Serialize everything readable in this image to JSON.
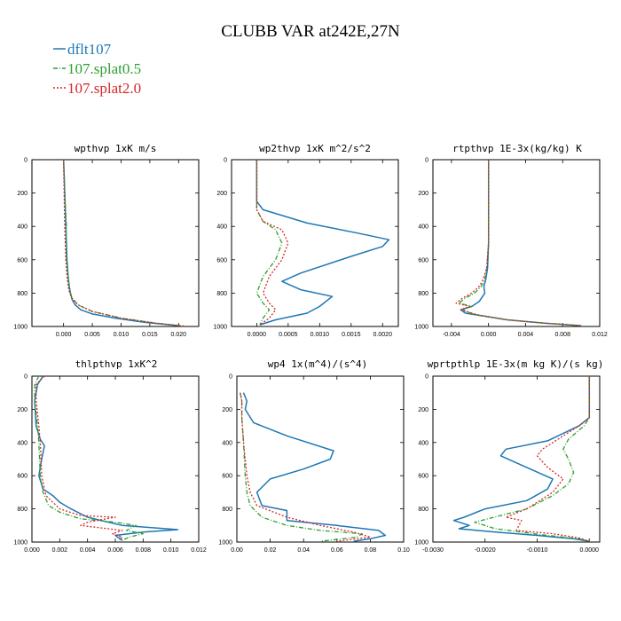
{
  "figure": {
    "title": "CLUBB VAR at242E,27N"
  },
  "colors": {
    "dflt107": "#1f77b4",
    "splat05": "#2ca02c",
    "splat20": "#d62728"
  },
  "chart_data": [
    {
      "type": "line",
      "id": "p1",
      "title": "wpthvp  1xK m/s",
      "series_names": [
        "dflt107",
        "107.splat0.5",
        "107.splat2.0"
      ],
      "xlim": [
        -0.0055,
        0.0235
      ],
      "ylim": [
        1000,
        0
      ],
      "xticks": [
        0,
        0.005,
        0.01,
        0.015,
        0.02
      ],
      "xtick_labels": [
        "0.000",
        "0.005",
        "0.010",
        "0.015",
        "0.020"
      ],
      "yticks": [
        0,
        200,
        400,
        600,
        800,
        1000
      ],
      "ytick_labels": [
        "0",
        "200",
        "400",
        "600",
        "800",
        "1000"
      ],
      "series": [
        {
          "name": "dflt107",
          "x": [
            0,
            0.0002,
            0.0004,
            0.0006,
            0.0008,
            0.001,
            0.0012,
            0.0015,
            0.002,
            0.003,
            0.005,
            0.009,
            0.014,
            0.02
          ],
          "y": [
            0,
            200,
            400,
            600,
            700,
            760,
            800,
            840,
            870,
            900,
            925,
            950,
            975,
            995
          ]
        },
        {
          "name": "107.splat0.5",
          "x": [
            0,
            0.0002,
            0.0005,
            0.0004,
            0.0005,
            0.0008,
            0.001,
            0.0015,
            0.0025,
            0.005,
            0.01,
            0.016,
            0.021
          ],
          "y": [
            0,
            200,
            400,
            500,
            600,
            700,
            780,
            830,
            870,
            910,
            950,
            980,
            998
          ]
        },
        {
          "name": "107.splat2.0",
          "x": [
            0,
            0.0001,
            0.0002,
            0.0003,
            0.0004,
            0.0006,
            0.0009,
            0.0014,
            0.0025,
            0.005,
            0.01,
            0.016,
            0.021
          ],
          "y": [
            0,
            200,
            400,
            500,
            600,
            700,
            780,
            830,
            870,
            910,
            950,
            980,
            998
          ]
        }
      ]
    },
    {
      "type": "line",
      "id": "p2",
      "title": "wp2thvp  1xK m^2/s^2",
      "series_names": [
        "dflt107",
        "107.splat0.5",
        "107.splat2.0"
      ],
      "xlim": [
        -0.0004,
        0.00225
      ],
      "ylim": [
        1000,
        0
      ],
      "xticks": [
        0,
        0.0005,
        0.001,
        0.0015,
        0.002
      ],
      "xtick_labels": [
        "0.0000",
        "0.0005",
        "0.0010",
        "0.0015",
        "0.0020"
      ],
      "yticks": [
        0,
        200,
        400,
        600,
        800,
        1000
      ],
      "ytick_labels": [
        "0",
        "200",
        "400",
        "600",
        "800",
        "1000"
      ],
      "series": [
        {
          "name": "dflt107",
          "x": [
            0,
            0,
            0,
            0.0001,
            0.0008,
            0.0016,
            0.0021,
            0.002,
            0.0015,
            0.0007,
            0.0004,
            0.0007,
            0.0012,
            0.001,
            0.0008,
            0.0003,
            5e-05
          ],
          "y": [
            0,
            150,
            250,
            300,
            380,
            440,
            480,
            520,
            580,
            680,
            730,
            780,
            820,
            880,
            920,
            960,
            990
          ]
        },
        {
          "name": "107.splat0.5",
          "x": [
            0,
            0,
            0,
            0.0001,
            0.0003,
            0.0004,
            0.0003,
            0.0001,
            0,
            0.0001,
            0.0002,
            0.0001,
            5e-05
          ],
          "y": [
            0,
            150,
            300,
            370,
            420,
            500,
            600,
            700,
            800,
            860,
            900,
            950,
            990
          ]
        },
        {
          "name": "107.splat2.0",
          "x": [
            0,
            0,
            0,
            0.0001,
            0.0004,
            0.0005,
            0.0004,
            0.0002,
            0.0001,
            0.0002,
            0.0003,
            0.0002,
            5e-05
          ],
          "y": [
            0,
            150,
            300,
            370,
            420,
            500,
            600,
            700,
            800,
            860,
            900,
            950,
            990
          ]
        }
      ]
    },
    {
      "type": "line",
      "id": "p3",
      "title": "rtpthvp  1E-3x(kg/kg) K",
      "series_names": [
        "dflt107",
        "107.splat0.5",
        "107.splat2.0"
      ],
      "xlim": [
        -0.006,
        0.012
      ],
      "ylim": [
        1000,
        0
      ],
      "xticks": [
        -0.004,
        0,
        0.004,
        0.008,
        0.012
      ],
      "xtick_labels": [
        "-0.004",
        "0.000",
        "0.004",
        "0.008",
        "0.012"
      ],
      "yticks": [
        0,
        200,
        400,
        600,
        800,
        1000
      ],
      "ytick_labels": [
        "0",
        "200",
        "400",
        "600",
        "800",
        "1000"
      ],
      "series": [
        {
          "name": "dflt107",
          "x": [
            0,
            0,
            -0.0001,
            -0.0003,
            -0.0005,
            -0.0004,
            -0.001,
            -0.0018,
            -0.003,
            -0.0025,
            -0.0002,
            0.002,
            0.006,
            0.01
          ],
          "y": [
            0,
            500,
            650,
            720,
            760,
            800,
            850,
            880,
            900,
            920,
            940,
            960,
            980,
            995
          ]
        },
        {
          "name": "107.splat0.5",
          "x": [
            0,
            0,
            -0.0002,
            -0.0004,
            -0.0008,
            -0.0015,
            -0.0025,
            -0.0032,
            -0.0018,
            -0.0028,
            -0.0015,
            0.002,
            0.006,
            0.01
          ],
          "y": [
            0,
            500,
            650,
            720,
            760,
            800,
            830,
            860,
            880,
            900,
            930,
            960,
            980,
            995
          ]
        },
        {
          "name": "107.splat2.0",
          "x": [
            0,
            0,
            -0.0002,
            -0.0006,
            -0.001,
            -0.0018,
            -0.0028,
            -0.0035,
            -0.002,
            -0.003,
            -0.0012,
            0.002,
            0.006,
            0.01
          ],
          "y": [
            0,
            500,
            650,
            720,
            760,
            800,
            830,
            860,
            880,
            900,
            930,
            960,
            980,
            995
          ]
        }
      ]
    },
    {
      "type": "line",
      "id": "p4",
      "title": "thlpthvp  1xK^2",
      "series_names": [
        "dflt107",
        "107.splat0.5",
        "107.splat2.0"
      ],
      "xlim": [
        0,
        0.012
      ],
      "ylim": [
        1000,
        0
      ],
      "xticks": [
        0,
        0.002,
        0.004,
        0.006,
        0.008,
        0.01,
        0.012
      ],
      "xtick_labels": [
        "0.000",
        "0.002",
        "0.004",
        "0.006",
        "0.008",
        "0.010",
        "0.012"
      ],
      "yticks": [
        0,
        200,
        400,
        600,
        800,
        1000
      ],
      "ytick_labels": [
        "0",
        "200",
        "400",
        "600",
        "800",
        "1000"
      ],
      "series": [
        {
          "name": "dflt107",
          "x": [
            0.0008,
            0.0004,
            0.0002,
            0.0003,
            0.0006,
            0.0009,
            0.0007,
            0.0005,
            0.0008,
            0.0015,
            0.002,
            0.0028,
            0.004,
            0.0065,
            0.0105,
            0.008,
            0.006,
            0.0065
          ],
          "y": [
            0,
            50,
            150,
            300,
            380,
            420,
            500,
            600,
            680,
            720,
            760,
            800,
            850,
            900,
            925,
            940,
            960,
            990
          ]
        },
        {
          "name": "107.splat0.5",
          "x": [
            0.0005,
            0.0002,
            0.0002,
            0.0004,
            0.0005,
            0.0006,
            0.0008,
            0.0012,
            0.002,
            0.0035,
            0.006,
            0.0075,
            0.0068,
            0.008,
            0.007,
            0.0065
          ],
          "y": [
            0,
            50,
            150,
            300,
            400,
            600,
            700,
            780,
            820,
            860,
            880,
            900,
            930,
            950,
            970,
            990
          ]
        },
        {
          "name": "107.splat2.0",
          "x": [
            0.0009,
            0.0003,
            0.0003,
            0.0005,
            0.0006,
            0.0007,
            0.001,
            0.002,
            0.0035,
            0.006,
            0.004,
            0.0035,
            0.0065,
            0.0058,
            0.0065,
            0.0063
          ],
          "y": [
            0,
            50,
            150,
            300,
            400,
            600,
            720,
            800,
            840,
            850,
            880,
            900,
            930,
            950,
            970,
            990
          ]
        }
      ]
    },
    {
      "type": "line",
      "id": "p5",
      "title": "wp4  1x(m^4)/(s^4)",
      "series_names": [
        "dflt107",
        "107.splat0.5",
        "107.splat2.0"
      ],
      "xlim": [
        0,
        0.1
      ],
      "ylim": [
        1000,
        0
      ],
      "xticks": [
        0,
        0.02,
        0.04,
        0.06,
        0.08,
        0.1
      ],
      "xtick_labels": [
        "0.00",
        "0.02",
        "0.04",
        "0.06",
        "0.08",
        "0.10"
      ],
      "yticks": [
        0,
        200,
        400,
        600,
        800,
        1000
      ],
      "ytick_labels": [
        "0",
        "200",
        "400",
        "600",
        "800",
        "1000"
      ],
      "series": [
        {
          "name": "dflt107",
          "x": [
            0.004,
            0.006,
            0.005,
            0.01,
            0.03,
            0.058,
            0.056,
            0.04,
            0.02,
            0.012,
            0.015,
            0.03,
            0.03,
            0.06,
            0.085,
            0.089,
            0.08,
            0.07
          ],
          "y": [
            100,
            150,
            200,
            280,
            360,
            450,
            500,
            560,
            620,
            700,
            780,
            810,
            870,
            900,
            930,
            960,
            980,
            995
          ]
        },
        {
          "name": "107.splat0.5",
          "x": [
            0.002,
            0.003,
            0.003,
            0.004,
            0.005,
            0.006,
            0.008,
            0.015,
            0.03,
            0.05,
            0.075,
            0.072,
            0.05
          ],
          "y": [
            100,
            150,
            250,
            400,
            600,
            700,
            780,
            850,
            900,
            930,
            950,
            970,
            995
          ]
        },
        {
          "name": "107.splat2.0",
          "x": [
            0.002,
            0.003,
            0.003,
            0.004,
            0.006,
            0.008,
            0.012,
            0.03,
            0.05,
            0.07,
            0.08,
            0.06
          ],
          "y": [
            100,
            150,
            250,
            400,
            600,
            700,
            780,
            850,
            900,
            940,
            970,
            995
          ]
        }
      ]
    },
    {
      "type": "line",
      "id": "p6",
      "title": "wprtpthlp  1E-3x(m kg K)/(s kg)",
      "series_names": [
        "dflt107",
        "107.splat0.5",
        "107.splat2.0"
      ],
      "xlim": [
        -0.003,
        0.0002
      ],
      "ylim": [
        1000,
        0
      ],
      "xticks": [
        -0.003,
        -0.002,
        -0.001,
        0
      ],
      "xtick_labels": [
        "-0.0030",
        "-0.0020",
        "-0.0010",
        "0.0000"
      ],
      "yticks": [
        0,
        200,
        400,
        600,
        800,
        1000
      ],
      "ytick_labels": [
        "0",
        "200",
        "400",
        "600",
        "800",
        "1000"
      ],
      "series": [
        {
          "name": "dflt107",
          "x": [
            0,
            0,
            -0.0002,
            -0.0008,
            -0.0016,
            -0.0017,
            -0.0012,
            -0.0007,
            -0.0008,
            -0.0012,
            -0.002,
            -0.0024,
            -0.0026,
            -0.0023,
            -0.0025,
            -0.0018,
            -0.001,
            -0.0003,
            0
          ],
          "y": [
            0,
            250,
            300,
            390,
            440,
            480,
            550,
            620,
            680,
            750,
            800,
            850,
            870,
            900,
            920,
            940,
            960,
            980,
            995
          ]
        },
        {
          "name": "107.splat0.5",
          "x": [
            0,
            0,
            -0.0001,
            -0.0004,
            -0.0005,
            -0.0004,
            -0.0003,
            -0.0004,
            -0.0007,
            -0.0012,
            -0.0017,
            -0.0022,
            -0.0018,
            -0.0008,
            -0.0002,
            0
          ],
          "y": [
            0,
            250,
            300,
            380,
            440,
            500,
            580,
            650,
            720,
            800,
            840,
            880,
            920,
            960,
            980,
            995
          ]
        },
        {
          "name": "107.splat2.0",
          "x": [
            0,
            0,
            -0.0002,
            -0.0006,
            -0.0009,
            -0.001,
            -0.0008,
            -0.0005,
            -0.0007,
            -0.0012,
            -0.0016,
            -0.0013,
            -0.0014,
            -0.0007,
            -0.0002,
            0
          ],
          "y": [
            0,
            250,
            300,
            380,
            440,
            480,
            550,
            620,
            700,
            800,
            850,
            870,
            930,
            950,
            975,
            995
          ]
        }
      ]
    }
  ],
  "legend": [
    {
      "label": "dflt107",
      "color": "#1f77b4",
      "dash": "solid"
    },
    {
      "label": "107.splat0.5",
      "color": "#2ca02c",
      "dash": "dashdot"
    },
    {
      "label": "107.splat2.0",
      "color": "#d62728",
      "dash": "dotted"
    }
  ]
}
